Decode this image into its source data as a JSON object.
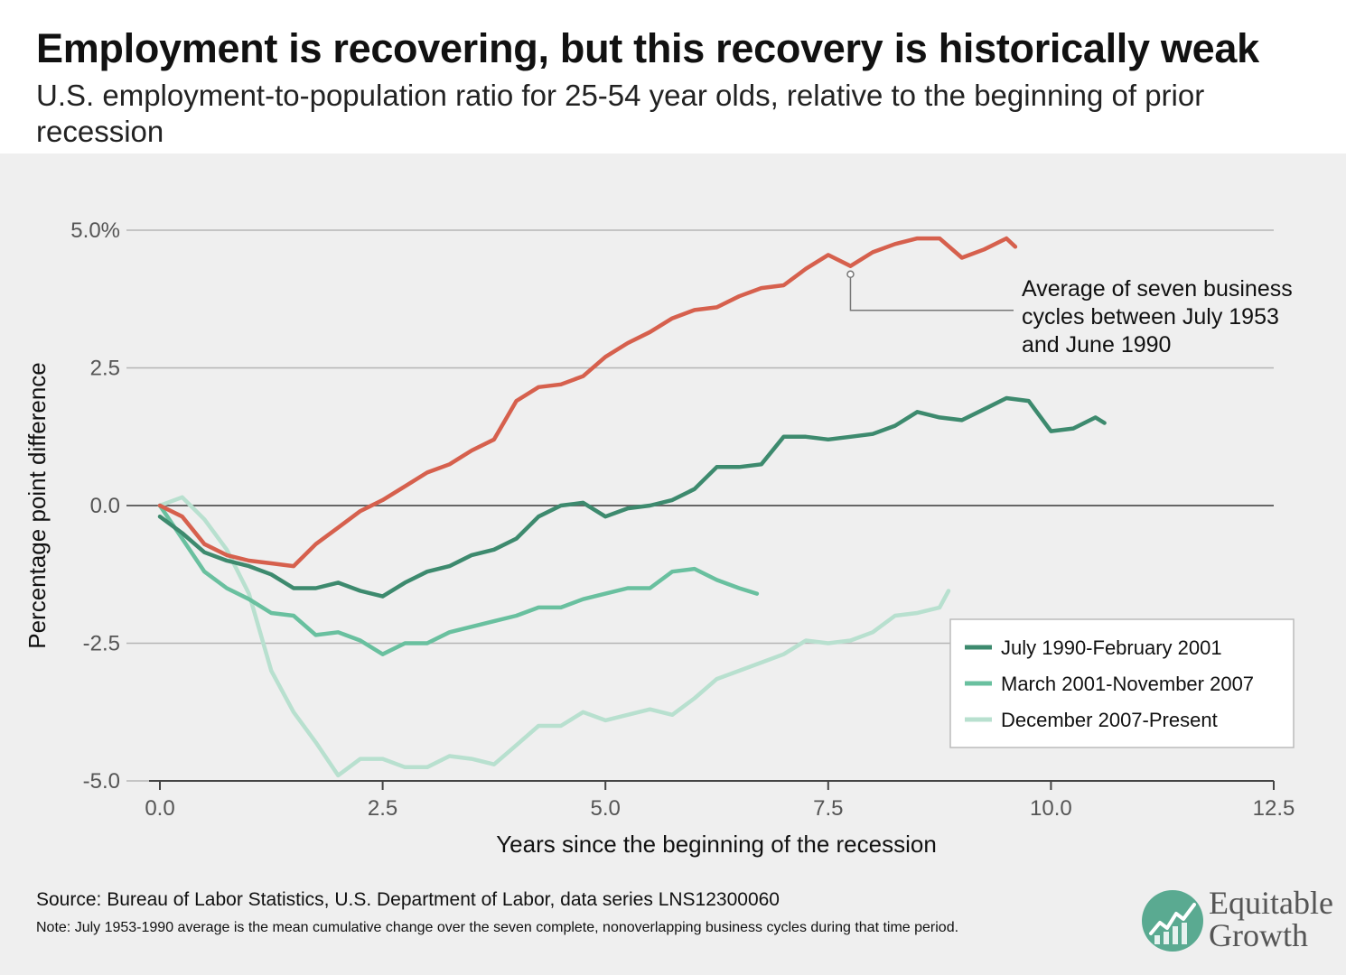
{
  "title": "Employment is recovering, but this recovery is historically weak",
  "subtitle": "U.S. employment-to-population ratio for 25-54 year olds, relative to the beginning of prior recession",
  "footer": {
    "source": "Source: Bureau of Labor Statistics, U.S. Department of Labor, data series LNS12300060",
    "note": "Note: July 1953-1990 average is the mean cumulative change over the seven complete, nonoverlapping business cycles during that time period."
  },
  "brand": {
    "line1": "Equitable",
    "line2": "Growth",
    "color": "#5aaa91"
  },
  "chart_data": {
    "type": "line",
    "xlabel": "Years since the beginning of the recession",
    "ylabel": "Percentage point difference",
    "xlim": [
      0,
      12.5
    ],
    "ylim": [
      -5,
      5
    ],
    "x_ticks": [
      "0.0",
      "2.5",
      "5.0",
      "7.5",
      "10.0",
      "12.5"
    ],
    "y_ticks": [
      "5.0%",
      "2.5",
      "0.0",
      "-2.5",
      "-5.0"
    ],
    "grid": true,
    "legend_position": "bottom-right",
    "annotation": {
      "text": [
        "Average of seven business",
        "cycles between July 1953",
        "and June 1990"
      ],
      "x": 7.75,
      "y": 4.2
    },
    "series": [
      {
        "name": "",
        "color": "#d6604d",
        "in_legend": false,
        "x": [
          0,
          0.25,
          0.5,
          0.75,
          1.0,
          1.25,
          1.5,
          1.75,
          2.0,
          2.25,
          2.5,
          2.75,
          3.0,
          3.25,
          3.5,
          3.75,
          4.0,
          4.25,
          4.5,
          4.75,
          5.0,
          5.25,
          5.5,
          5.75,
          6.0,
          6.25,
          6.5,
          6.75,
          7.0,
          7.25,
          7.5,
          7.75,
          8.0,
          8.25,
          8.5,
          8.75,
          9.0,
          9.25,
          9.5,
          9.6
        ],
        "y": [
          0,
          -0.2,
          -0.7,
          -0.9,
          -1.0,
          -1.05,
          -1.1,
          -0.7,
          -0.4,
          -0.1,
          0.1,
          0.35,
          0.6,
          0.75,
          1.0,
          1.2,
          1.9,
          2.15,
          2.2,
          2.35,
          2.7,
          2.95,
          3.15,
          3.4,
          3.55,
          3.6,
          3.8,
          3.95,
          4.0,
          4.3,
          4.55,
          4.35,
          4.6,
          4.75,
          4.85,
          4.85,
          4.5,
          4.65,
          4.85,
          4.7
        ]
      },
      {
        "name": "July 1990-February 2001",
        "color": "#3d8a6e",
        "in_legend": true,
        "x": [
          0,
          0.25,
          0.5,
          0.75,
          1.0,
          1.25,
          1.5,
          1.75,
          2.0,
          2.25,
          2.5,
          2.75,
          3.0,
          3.25,
          3.5,
          3.75,
          4.0,
          4.25,
          4.5,
          4.75,
          5.0,
          5.25,
          5.5,
          5.75,
          6.0,
          6.25,
          6.5,
          6.75,
          7.0,
          7.25,
          7.5,
          7.75,
          8.0,
          8.25,
          8.5,
          8.75,
          9.0,
          9.25,
          9.5,
          9.75,
          10.0,
          10.25,
          10.5,
          10.6
        ],
        "y": [
          -0.2,
          -0.5,
          -0.85,
          -1.0,
          -1.1,
          -1.25,
          -1.5,
          -1.5,
          -1.4,
          -1.55,
          -1.65,
          -1.4,
          -1.2,
          -1.1,
          -0.9,
          -0.8,
          -0.6,
          -0.2,
          0,
          0.05,
          -0.2,
          -0.05,
          0,
          0.1,
          0.3,
          0.7,
          0.7,
          0.75,
          1.25,
          1.25,
          1.2,
          1.25,
          1.3,
          1.45,
          1.7,
          1.6,
          1.55,
          1.75,
          1.95,
          1.9,
          1.35,
          1.4,
          1.6,
          1.5
        ]
      },
      {
        "name": "March 2001-November 2007",
        "color": "#69c09f",
        "in_legend": true,
        "x": [
          0,
          0.25,
          0.5,
          0.75,
          1.0,
          1.25,
          1.5,
          1.75,
          2.0,
          2.25,
          2.5,
          2.75,
          3.0,
          3.25,
          3.5,
          3.75,
          4.0,
          4.25,
          4.5,
          4.75,
          5.0,
          5.25,
          5.5,
          5.75,
          6.0,
          6.25,
          6.5,
          6.7
        ],
        "y": [
          0,
          -0.6,
          -1.2,
          -1.5,
          -1.7,
          -1.95,
          -2.0,
          -2.35,
          -2.3,
          -2.45,
          -2.7,
          -2.5,
          -2.5,
          -2.3,
          -2.2,
          -2.1,
          -2.0,
          -1.85,
          -1.85,
          -1.7,
          -1.6,
          -1.5,
          -1.5,
          -1.2,
          -1.15,
          -1.35,
          -1.5,
          -1.6
        ]
      },
      {
        "name": "December 2007-Present",
        "color": "#b8e0cf",
        "in_legend": true,
        "x": [
          0,
          0.25,
          0.5,
          0.75,
          1.0,
          1.25,
          1.5,
          1.75,
          2.0,
          2.25,
          2.5,
          2.75,
          3.0,
          3.25,
          3.5,
          3.75,
          4.0,
          4.25,
          4.5,
          4.75,
          5.0,
          5.25,
          5.5,
          5.75,
          6.0,
          6.25,
          6.5,
          6.75,
          7.0,
          7.25,
          7.5,
          7.75,
          8.0,
          8.25,
          8.5,
          8.75,
          8.85
        ],
        "y": [
          0,
          0.15,
          -0.25,
          -0.8,
          -1.6,
          -3.0,
          -3.75,
          -4.3,
          -4.9,
          -4.6,
          -4.6,
          -4.75,
          -4.75,
          -4.55,
          -4.6,
          -4.7,
          -4.35,
          -4.0,
          -4.0,
          -3.75,
          -3.9,
          -3.8,
          -3.7,
          -3.8,
          -3.5,
          -3.15,
          -3.0,
          -2.85,
          -2.7,
          -2.45,
          -2.5,
          -2.45,
          -2.3,
          -2.0,
          -1.95,
          -1.85,
          -1.55
        ]
      }
    ]
  }
}
